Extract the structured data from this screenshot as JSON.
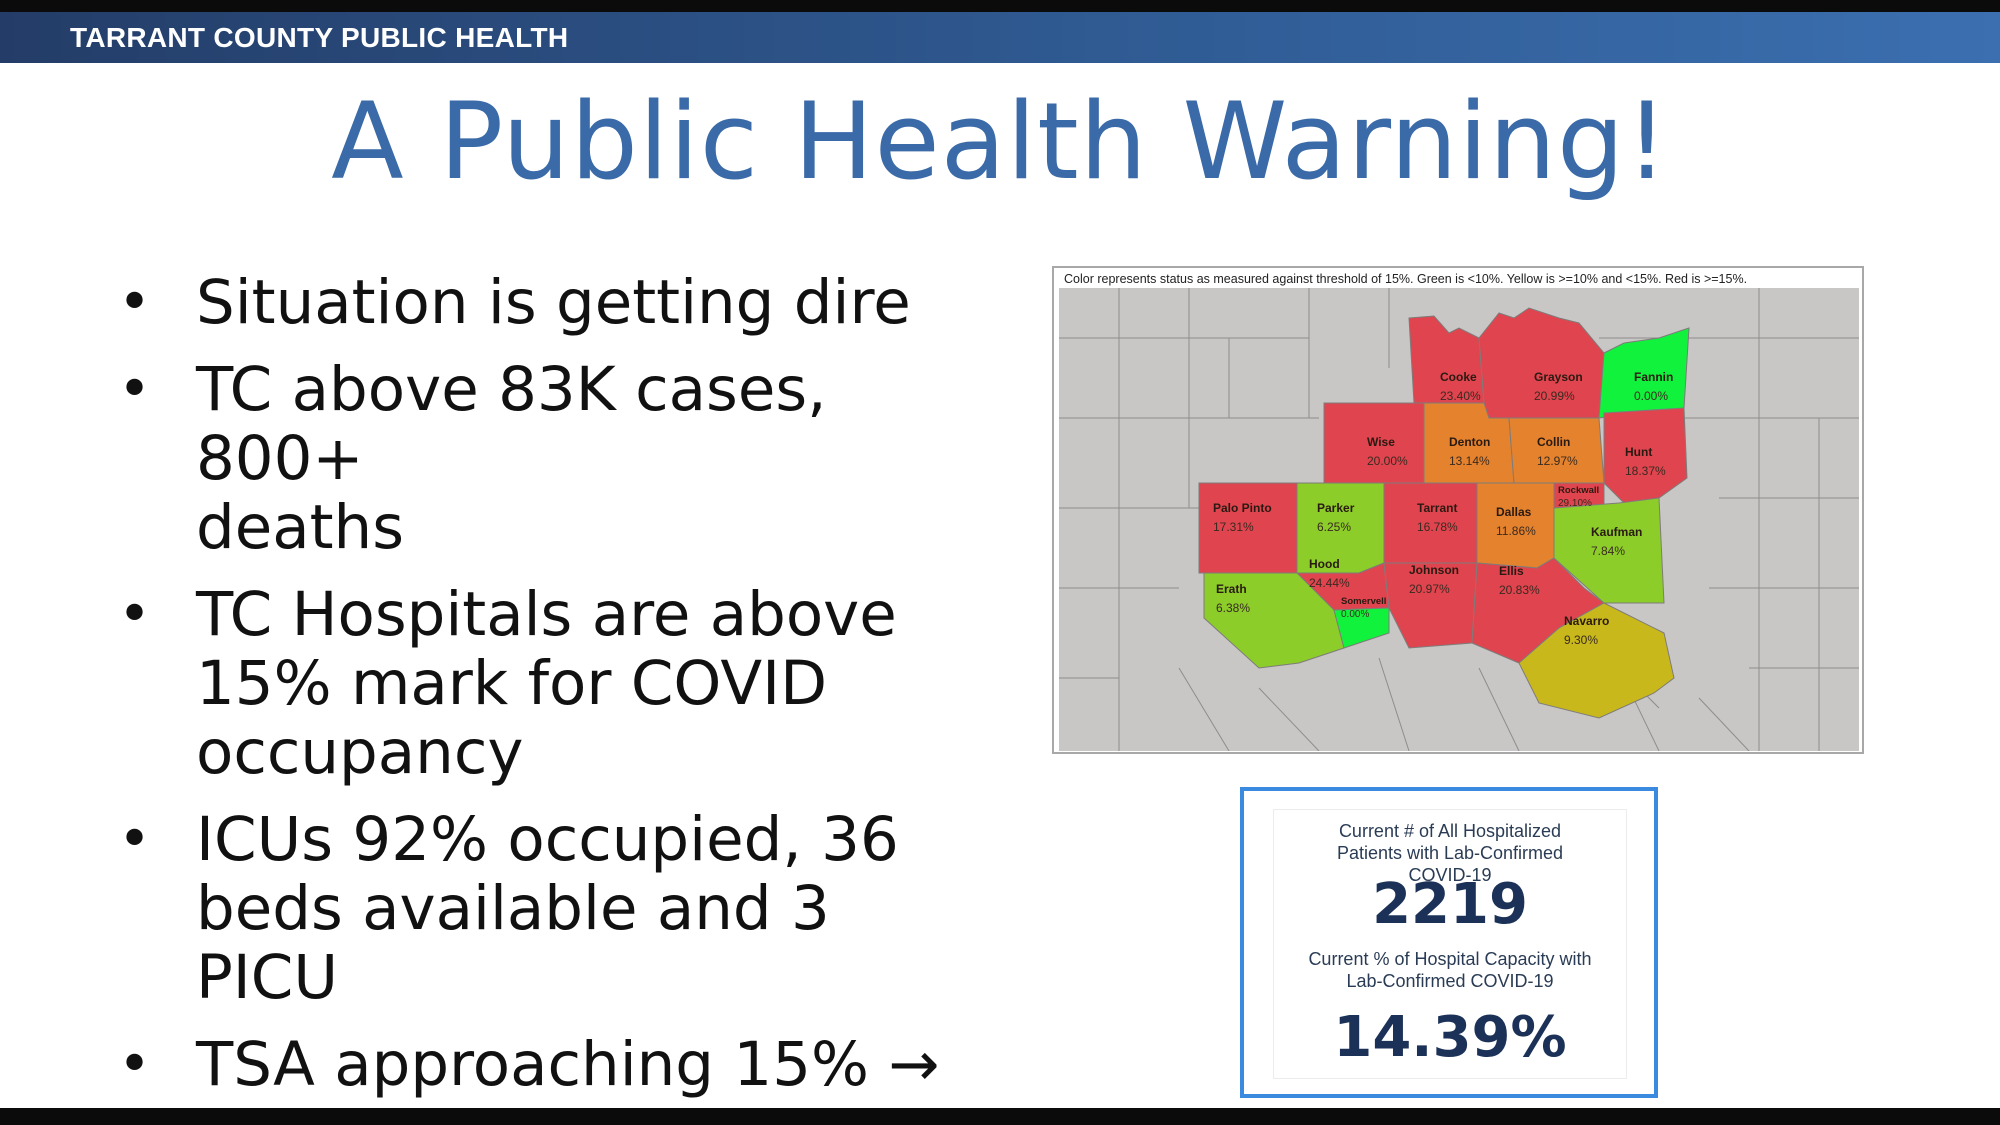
{
  "header": {
    "organization": "TARRANT COUNTY PUBLIC HEALTH"
  },
  "title": "A Public Health Warning!",
  "bullets": [
    {
      "lines": [
        "Situation is getting dire"
      ]
    },
    {
      "lines": [
        "TC above 83K cases, 800+",
        "deaths"
      ]
    },
    {
      "lines": [
        "TC Hospitals are above",
        "15% mark for COVID",
        "occupancy"
      ]
    },
    {
      "lines": [
        "ICUs 92% occupied, 36",
        "beds available and 3 PICU"
      ]
    },
    {
      "lines": [
        "TSA approaching 15% →"
      ]
    }
  ],
  "map": {
    "caption": "Color represents status as measured against threshold of 15%. Green is <10%. Yellow is >=10% and <15%. Red is >=15%.",
    "status_colors": {
      "red": "#e0444f",
      "orange": "#e4822d",
      "yellow": "#c8b81c",
      "light_green": "#8ccd2a",
      "bright_green": "#11f23c",
      "other": "#c9c7c5"
    },
    "counties": [
      {
        "name": "Cooke",
        "value": "23.40%",
        "status": "red"
      },
      {
        "name": "Grayson",
        "value": "20.99%",
        "status": "red"
      },
      {
        "name": "Fannin",
        "value": "0.00%",
        "status": "bright_green"
      },
      {
        "name": "Wise",
        "value": "20.00%",
        "status": "red"
      },
      {
        "name": "Denton",
        "value": "13.14%",
        "status": "orange"
      },
      {
        "name": "Collin",
        "value": "12.97%",
        "status": "orange"
      },
      {
        "name": "Hunt",
        "value": "18.37%",
        "status": "red"
      },
      {
        "name": "Palo Pinto",
        "value": "17.31%",
        "status": "red"
      },
      {
        "name": "Parker",
        "value": "6.25%",
        "status": "light_green"
      },
      {
        "name": "Tarrant",
        "value": "16.78%",
        "status": "red"
      },
      {
        "name": "Dallas",
        "value": "11.86%",
        "status": "orange"
      },
      {
        "name": "Rockwall",
        "value": "29.10%",
        "status": "red"
      },
      {
        "name": "Kaufman",
        "value": "7.84%",
        "status": "light_green"
      },
      {
        "name": "Hood",
        "value": "24.44%",
        "status": "red"
      },
      {
        "name": "Johnson",
        "value": "20.97%",
        "status": "red"
      },
      {
        "name": "Ellis",
        "value": "20.83%",
        "status": "red"
      },
      {
        "name": "Erath",
        "value": "6.38%",
        "status": "light_green"
      },
      {
        "name": "Somervell",
        "value": "0.00%",
        "status": "bright_green"
      },
      {
        "name": "Navarro",
        "value": "9.30%",
        "status": "yellow"
      }
    ]
  },
  "stats": {
    "hospitalized_label": "Current # of All Hospitalized Patients with Lab-Confirmed COVID-19",
    "hospitalized_value": "2219",
    "capacity_label": "Current % of Hospital Capacity with Lab-Confirmed COVID-19",
    "capacity_value": "14.39%"
  }
}
